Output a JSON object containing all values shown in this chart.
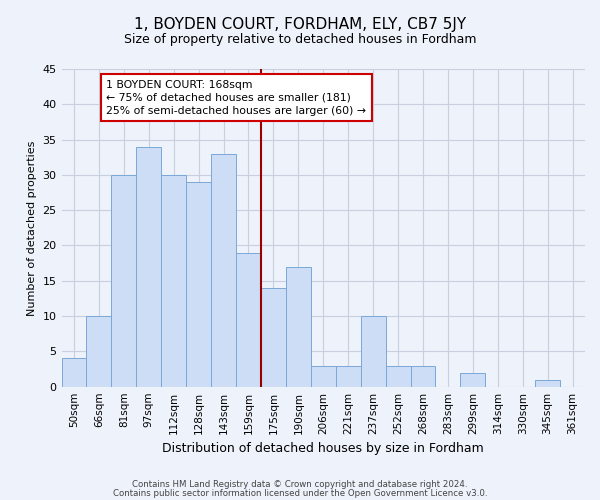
{
  "title": "1, BOYDEN COURT, FORDHAM, ELY, CB7 5JY",
  "subtitle": "Size of property relative to detached houses in Fordham",
  "xlabel": "Distribution of detached houses by size in Fordham",
  "ylabel": "Number of detached properties",
  "categories": [
    "50sqm",
    "66sqm",
    "81sqm",
    "97sqm",
    "112sqm",
    "128sqm",
    "143sqm",
    "159sqm",
    "175sqm",
    "190sqm",
    "206sqm",
    "221sqm",
    "237sqm",
    "252sqm",
    "268sqm",
    "283sqm",
    "299sqm",
    "314sqm",
    "330sqm",
    "345sqm",
    "361sqm"
  ],
  "values": [
    4,
    10,
    30,
    34,
    30,
    29,
    33,
    19,
    14,
    17,
    3,
    3,
    10,
    3,
    3,
    0,
    2,
    0,
    0,
    1,
    0
  ],
  "bar_color": "#ccddf5",
  "bar_edgecolor": "#7aa8d8",
  "ylim": [
    0,
    45
  ],
  "yticks": [
    0,
    5,
    10,
    15,
    20,
    25,
    30,
    35,
    40,
    45
  ],
  "property_line_x": 7.5,
  "annotation_line1": "1 BOYDEN COURT: 168sqm",
  "annotation_line2": "← 75% of detached houses are smaller (181)",
  "annotation_line3": "25% of semi-detached houses are larger (60) →",
  "annotation_box_color": "#ffffff",
  "annotation_box_edgecolor": "#cc0000",
  "property_line_color": "#990000",
  "footer_line1": "Contains HM Land Registry data © Crown copyright and database right 2024.",
  "footer_line2": "Contains public sector information licensed under the Open Government Licence v3.0.",
  "background_color": "#eef2fa",
  "grid_color": "#c8d0e0",
  "title_fontsize": 11,
  "subtitle_fontsize": 9,
  "ylabel_fontsize": 8,
  "xlabel_fontsize": 9,
  "tick_fontsize": 7.5,
  "annotation_fontsize": 7.8,
  "footer_fontsize": 6.2
}
